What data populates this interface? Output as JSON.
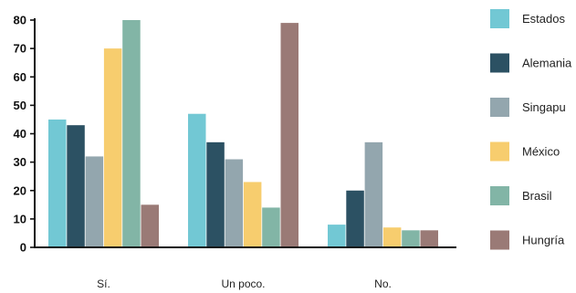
{
  "chart_data": {
    "type": "bar",
    "title": "",
    "xlabel": "",
    "ylabel": "",
    "categories": [
      "Sí.",
      "Un poco.",
      "No."
    ],
    "ylim": [
      0,
      80
    ],
    "yticks": [
      0,
      10,
      20,
      30,
      40,
      50,
      60,
      70,
      80
    ],
    "grid": false,
    "legend_position": "right",
    "series": [
      {
        "name": "Estados",
        "color": "#72c8d4",
        "values": [
          45,
          47,
          8
        ]
      },
      {
        "name": "Alemania",
        "color": "#2c5163",
        "values": [
          43,
          37,
          20
        ]
      },
      {
        "name": "Singapu",
        "color": "#93a6ae",
        "values": [
          32,
          31,
          37
        ]
      },
      {
        "name": "México",
        "color": "#f7cd6e",
        "values": [
          70,
          23,
          7
        ]
      },
      {
        "name": "Brasil",
        "color": "#82b5a6",
        "values": [
          80,
          14,
          6
        ]
      },
      {
        "name": "Hungría",
        "color": "#9a7a76",
        "values": [
          15,
          79,
          6
        ]
      }
    ]
  }
}
